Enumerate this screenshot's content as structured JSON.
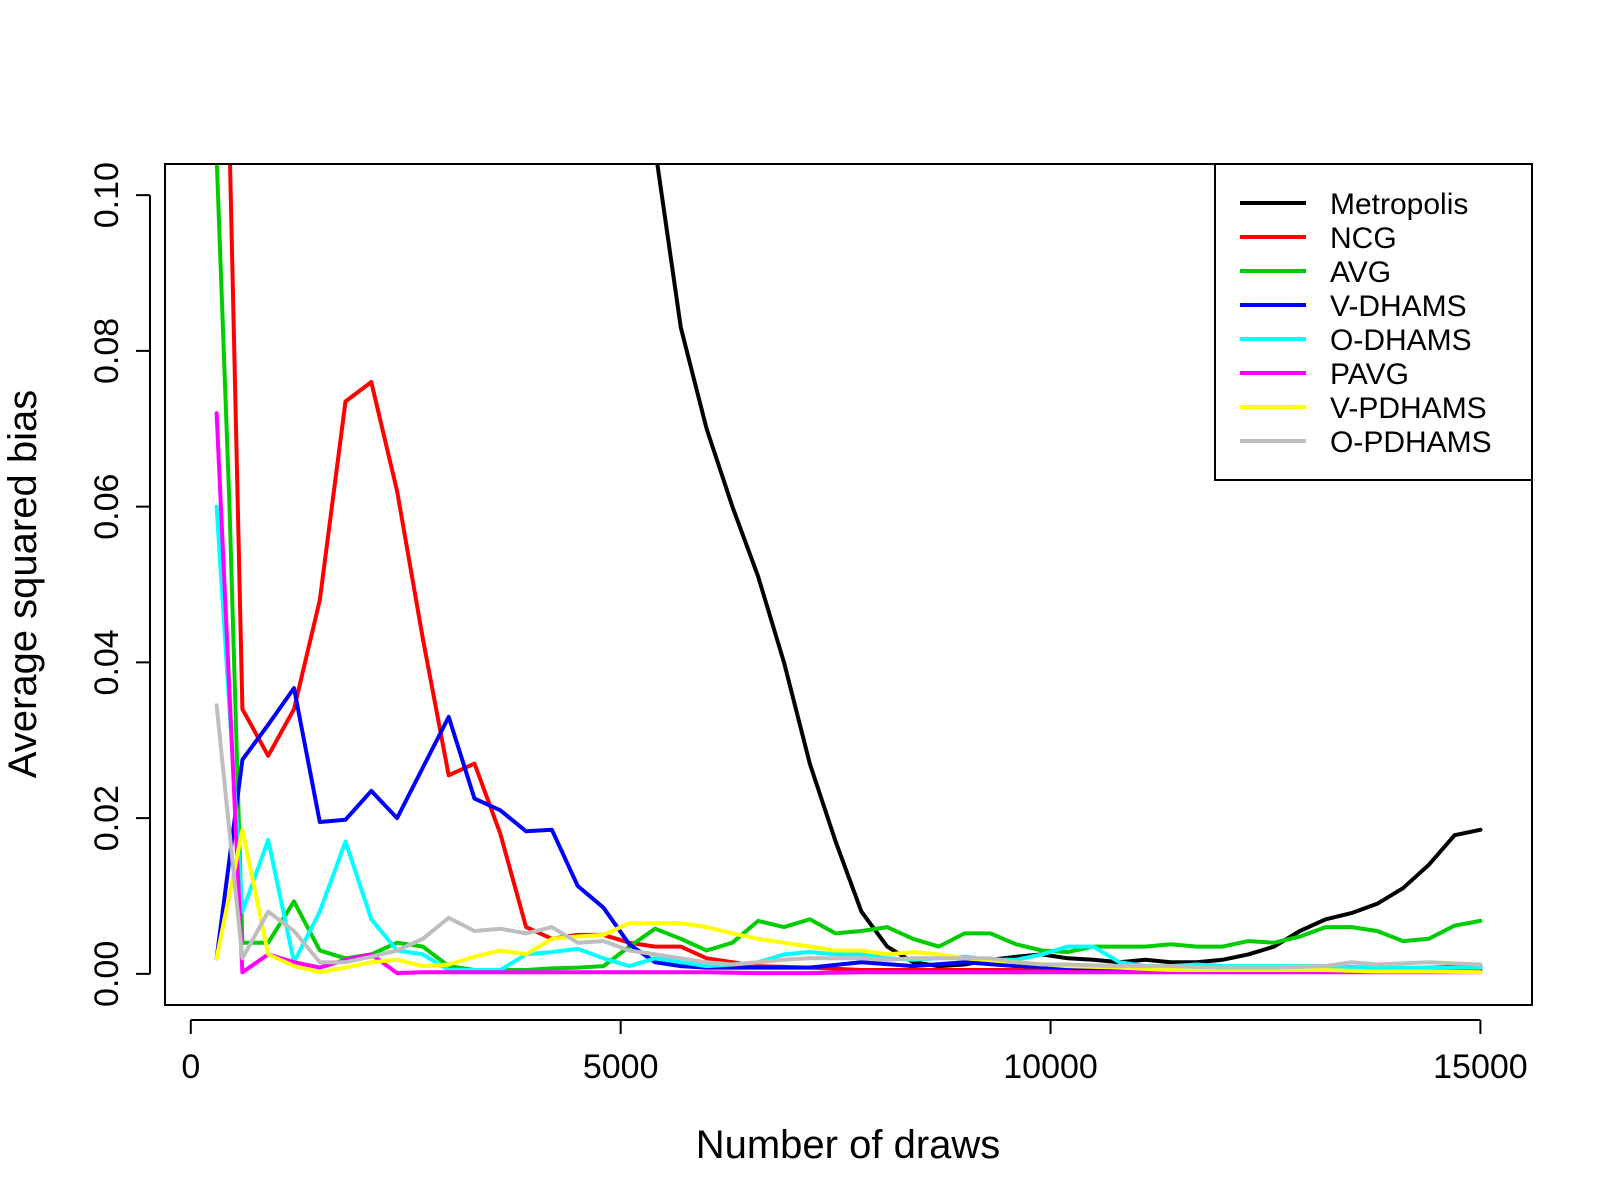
{
  "chart_data": {
    "type": "line",
    "title": "",
    "xlabel": "Number of draws",
    "ylabel": "Average squared bias",
    "xlim": [
      -300,
      15600
    ],
    "ylim": [
      -0.004,
      0.104
    ],
    "x_ticks": [
      0,
      5000,
      10000,
      15000
    ],
    "x_tick_labels": [
      "0",
      "5000",
      "10000",
      "15000"
    ],
    "y_ticks": [
      0.0,
      0.02,
      0.04,
      0.06,
      0.08,
      0.1
    ],
    "y_tick_labels": [
      "0.00",
      "0.02",
      "0.04",
      "0.06",
      "0.08",
      "0.10"
    ],
    "grid": false,
    "legend_position": "top-right",
    "series": [
      {
        "name": "Metropolis",
        "color": "#000000",
        "x": [
          5400,
          5700,
          6000,
          6300,
          6600,
          6900,
          7200,
          7500,
          7800,
          8100,
          8400,
          8700,
          9000,
          9300,
          9600,
          9900,
          10200,
          10500,
          10800,
          11100,
          11400,
          11700,
          12000,
          12300,
          12600,
          12900,
          13200,
          13500,
          13800,
          14100,
          14400,
          14700,
          15000
        ],
        "y": [
          0.106,
          0.083,
          0.07,
          0.06,
          0.051,
          0.04,
          0.027,
          0.017,
          0.008,
          0.0035,
          0.0015,
          0.001,
          0.0012,
          0.0018,
          0.0022,
          0.0025,
          0.002,
          0.0018,
          0.0015,
          0.0018,
          0.0015,
          0.0015,
          0.0018,
          0.0025,
          0.0035,
          0.0055,
          0.007,
          0.0078,
          0.009,
          0.011,
          0.014,
          0.0178,
          0.0185
        ]
      },
      {
        "name": "NCG",
        "color": "#ff0000",
        "x": [
          450,
          600,
          900,
          1200,
          1500,
          1800,
          2100,
          2400,
          2700,
          3000,
          3300,
          3600,
          3900,
          4200,
          4500,
          4800,
          5100,
          5400,
          5700,
          6000,
          6600,
          7200,
          7800,
          8400,
          9000,
          9600,
          10200,
          10800,
          11400,
          12000,
          12600,
          13200,
          13800,
          14400,
          15000
        ],
        "y": [
          0.107,
          0.034,
          0.028,
          0.034,
          0.048,
          0.0735,
          0.076,
          0.062,
          0.043,
          0.0255,
          0.027,
          0.018,
          0.006,
          0.0045,
          0.005,
          0.005,
          0.004,
          0.0035,
          0.0035,
          0.002,
          0.001,
          0.0008,
          0.0005,
          0.0005,
          0.0005,
          0.0005,
          0.0005,
          0.0005,
          0.0005,
          0.0005,
          0.0005,
          0.0005,
          0.0005,
          0.0005,
          0.0005
        ]
      },
      {
        "name": "AVG",
        "color": "#00cd00",
        "x": [
          300,
          450,
          600,
          900,
          1200,
          1500,
          1800,
          2100,
          2400,
          2700,
          3000,
          3300,
          3600,
          3900,
          4200,
          4500,
          4800,
          5100,
          5400,
          5700,
          6000,
          6300,
          6600,
          6900,
          7200,
          7500,
          7800,
          8100,
          8400,
          8700,
          9000,
          9300,
          9600,
          9900,
          10200,
          10500,
          10800,
          11100,
          11400,
          11700,
          12000,
          12300,
          12600,
          12900,
          13200,
          13500,
          13800,
          14100,
          14400,
          14700,
          15000
        ],
        "y": [
          0.105,
          0.06,
          0.004,
          0.004,
          0.0093,
          0.003,
          0.002,
          0.0025,
          0.004,
          0.0035,
          0.001,
          0.0005,
          0.0005,
          0.0005,
          0.0007,
          0.0008,
          0.001,
          0.0035,
          0.0058,
          0.0045,
          0.003,
          0.004,
          0.0068,
          0.006,
          0.007,
          0.0052,
          0.0055,
          0.006,
          0.0045,
          0.0035,
          0.0052,
          0.0052,
          0.0038,
          0.003,
          0.0028,
          0.0035,
          0.0035,
          0.0035,
          0.0038,
          0.0035,
          0.0035,
          0.0042,
          0.004,
          0.0048,
          0.006,
          0.006,
          0.0055,
          0.0042,
          0.0045,
          0.0062,
          0.0068
        ]
      },
      {
        "name": "V-DHAMS",
        "color": "#0000ff",
        "x": [
          300,
          600,
          900,
          1200,
          1500,
          1800,
          2100,
          2400,
          2700,
          3000,
          3300,
          3600,
          3900,
          4200,
          4500,
          4800,
          5100,
          5400,
          5700,
          6000,
          6600,
          7200,
          7800,
          8400,
          9000,
          9600,
          10200,
          10800,
          11400,
          12000,
          12600,
          13200,
          13800,
          14400,
          15000
        ],
        "y": [
          0.002,
          0.0275,
          0.032,
          0.0367,
          0.0195,
          0.0198,
          0.0235,
          0.02,
          0.0265,
          0.033,
          0.0225,
          0.021,
          0.0183,
          0.0185,
          0.0113,
          0.0085,
          0.0038,
          0.0015,
          0.001,
          0.0008,
          0.0008,
          0.0008,
          0.0015,
          0.001,
          0.0015,
          0.001,
          0.0008,
          0.0005,
          0.0005,
          0.0005,
          0.0005,
          0.0005,
          0.0005,
          0.0008,
          0.001
        ]
      },
      {
        "name": "O-DHAMS",
        "color": "#00ffff",
        "x": [
          300,
          600,
          900,
          1200,
          1500,
          1800,
          2100,
          2400,
          2700,
          3000,
          3300,
          3600,
          3900,
          4200,
          4500,
          4800,
          5100,
          5400,
          5700,
          6000,
          6300,
          6600,
          6900,
          7200,
          7500,
          7800,
          8100,
          8400,
          8700,
          9000,
          9300,
          9600,
          9900,
          10200,
          10500,
          10800,
          11100,
          11400,
          11700,
          12000,
          12600,
          13200,
          13800,
          14400,
          15000
        ],
        "y": [
          0.06,
          0.008,
          0.0172,
          0.0015,
          0.008,
          0.017,
          0.007,
          0.003,
          0.0025,
          0.0005,
          0.0005,
          0.0005,
          0.0025,
          0.0028,
          0.0032,
          0.002,
          0.001,
          0.002,
          0.0015,
          0.001,
          0.0012,
          0.0015,
          0.0025,
          0.0028,
          0.0025,
          0.0025,
          0.002,
          0.0018,
          0.002,
          0.0022,
          0.0018,
          0.0018,
          0.0025,
          0.0035,
          0.0035,
          0.0015,
          0.001,
          0.001,
          0.0012,
          0.001,
          0.001,
          0.001,
          0.0008,
          0.0008,
          0.0008
        ]
      },
      {
        "name": "PAVG",
        "color": "#ff00ff",
        "x": [
          300,
          600,
          900,
          1200,
          1500,
          1800,
          2100,
          2400,
          2700,
          3000,
          3600,
          4200,
          4800,
          5400,
          6000,
          6600,
          7200,
          7800,
          8400,
          9000,
          9600,
          10200,
          10800,
          11400,
          12000,
          12600,
          13200,
          13800,
          14400,
          15000
        ],
        "y": [
          0.072,
          0.0002,
          0.0025,
          0.0015,
          0.0008,
          0.0018,
          0.0025,
          0.0001,
          0.0002,
          0.0002,
          0.0002,
          0.0002,
          0.0002,
          0.0002,
          0.0002,
          0.0001,
          0.0001,
          0.0002,
          0.0002,
          0.0002,
          0.0002,
          0.0002,
          0.0002,
          0.0002,
          0.0002,
          0.0002,
          0.0002,
          0.0002,
          0.0002,
          0.0002
        ]
      },
      {
        "name": "V-PDHAMS",
        "color": "#ffff00",
        "x": [
          300,
          600,
          900,
          1200,
          1500,
          1800,
          2100,
          2400,
          2700,
          3000,
          3300,
          3600,
          3900,
          4200,
          4500,
          4800,
          5100,
          5400,
          5700,
          6000,
          6300,
          6600,
          6900,
          7200,
          7500,
          7800,
          8100,
          8400,
          8700,
          9000,
          9600,
          10200,
          10800,
          11400,
          12000,
          12600,
          13200,
          13800,
          14400,
          15000
        ],
        "y": [
          0.002,
          0.0185,
          0.0025,
          0.001,
          0.0002,
          0.0008,
          0.0015,
          0.0018,
          0.001,
          0.0012,
          0.0022,
          0.003,
          0.0025,
          0.0045,
          0.0048,
          0.005,
          0.0065,
          0.0065,
          0.0065,
          0.006,
          0.0052,
          0.0045,
          0.004,
          0.0035,
          0.003,
          0.003,
          0.0025,
          0.0028,
          0.0025,
          0.002,
          0.0015,
          0.001,
          0.0008,
          0.0005,
          0.0005,
          0.0005,
          0.0005,
          0.0003,
          0.0003,
          0.0002
        ]
      },
      {
        "name": "O-PDHAMS",
        "color": "#bebebe",
        "x": [
          300,
          600,
          900,
          1200,
          1500,
          1800,
          2100,
          2400,
          2700,
          3000,
          3300,
          3600,
          3900,
          4200,
          4500,
          4800,
          5100,
          5400,
          5700,
          6000,
          6300,
          6600,
          6900,
          7200,
          7500,
          7800,
          8100,
          8400,
          8700,
          9000,
          9300,
          9600,
          9900,
          10200,
          10800,
          11400,
          12000,
          12600,
          13200,
          13500,
          13800,
          14400,
          15000
        ],
        "y": [
          0.0345,
          0.002,
          0.008,
          0.0055,
          0.0015,
          0.0015,
          0.0022,
          0.003,
          0.0045,
          0.0072,
          0.0055,
          0.0058,
          0.0052,
          0.006,
          0.004,
          0.0042,
          0.003,
          0.0025,
          0.002,
          0.0015,
          0.0012,
          0.0015,
          0.0018,
          0.002,
          0.002,
          0.002,
          0.0018,
          0.002,
          0.002,
          0.002,
          0.002,
          0.0015,
          0.0012,
          0.0012,
          0.001,
          0.001,
          0.0008,
          0.0008,
          0.001,
          0.0015,
          0.0012,
          0.0015,
          0.0012
        ]
      }
    ]
  }
}
